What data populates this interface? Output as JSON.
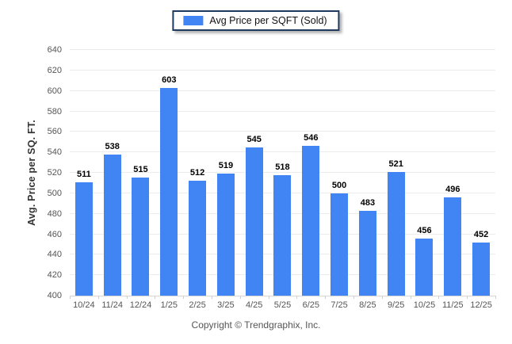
{
  "legend": {
    "label": "Avg Price per SQFT (Sold)",
    "swatch_color": "#4184f3",
    "border_color": "#1f3a5f"
  },
  "footer": {
    "copyright": "Copyright © Trendgraphix, Inc."
  },
  "chart_data": {
    "type": "bar",
    "title": "",
    "categories": [
      "10/24",
      "11/24",
      "12/24",
      "1/25",
      "2/25",
      "3/25",
      "4/25",
      "5/25",
      "6/25",
      "7/25",
      "8/25",
      "9/25",
      "10/25",
      "11/25",
      "12/25"
    ],
    "values": [
      511,
      538,
      515,
      603,
      512,
      519,
      545,
      518,
      546,
      500,
      483,
      521,
      456,
      496,
      452
    ],
    "series_name": "Avg Price per SQFT (Sold)",
    "xlabel": "",
    "ylabel": "Avg. Price per SQ. FT.",
    "ylim": [
      400,
      640
    ],
    "ytick_step": 20,
    "grid": true,
    "legend_position": "top",
    "bar_color": "#4184f3",
    "gridline_color": "#ececec"
  }
}
